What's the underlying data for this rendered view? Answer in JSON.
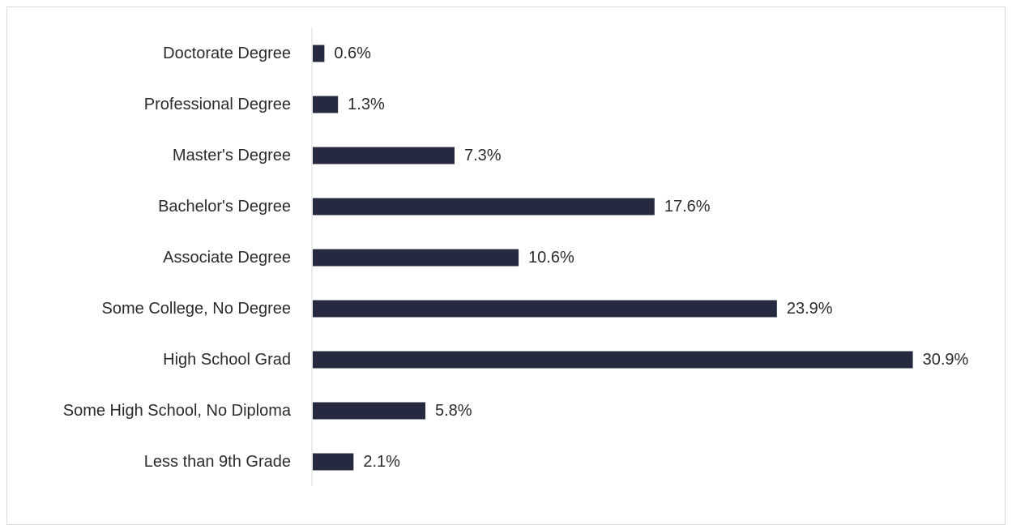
{
  "chart_data": {
    "type": "bar",
    "orientation": "horizontal",
    "title": "",
    "xlabel": "",
    "ylabel": "",
    "categories": [
      "Doctorate Degree",
      "Professional Degree",
      "Master's Degree",
      "Bachelor's Degree",
      "Associate Degree",
      "Some College, No Degree",
      "High School Grad",
      "Some High School, No Diploma",
      "Less than 9th Grade"
    ],
    "values": [
      0.6,
      1.3,
      7.3,
      17.6,
      10.6,
      23.9,
      30.9,
      5.8,
      2.1
    ],
    "value_labels": [
      "0.6%",
      "1.3%",
      "7.3%",
      "17.6%",
      "10.6%",
      "23.9%",
      "30.9%",
      "5.8%",
      "2.1%"
    ],
    "unit": "%",
    "xlim": [
      0,
      31
    ],
    "grid": false,
    "legend": "none",
    "bar_color": "#262a40",
    "axis_color": "#d9d9d9",
    "text_color": "#2b2b2b"
  }
}
